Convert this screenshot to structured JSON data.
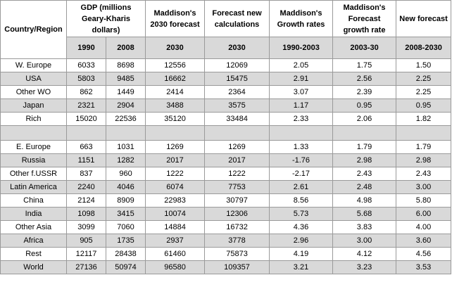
{
  "header": {
    "country": "Country/Region",
    "gdp_group": "GDP (millions Geary-Kharis dollars)",
    "maddison_2030": "Maddison's 2030 forecast",
    "forecast_new": "Forecast new calculations",
    "maddison_growth": "Maddison's Growth rates",
    "maddison_forecast_growth": "Maddison's Forecast growth rate",
    "new_forecast": "New forecast",
    "y1990": "1990",
    "y2008": "2008",
    "y2030a": "2030",
    "y2030b": "2030",
    "p1990_2003": "1990-2003",
    "p2003_30": "2003-30",
    "p2008_2030": "2008-2030"
  },
  "group1": [
    {
      "region": "W. Europe",
      "v1990": "6033",
      "v2008": "8698",
      "m2030": "12556",
      "f2030": "12069",
      "g1": "2.05",
      "g2": "1.75",
      "g3": "1.50"
    },
    {
      "region": "USA",
      "v1990": "5803",
      "v2008": "9485",
      "m2030": "16662",
      "f2030": "15475",
      "g1": "2.91",
      "g2": "2.56",
      "g3": "2.25"
    },
    {
      "region": "Other WO",
      "v1990": "862",
      "v2008": "1449",
      "m2030": "2414",
      "f2030": "2364",
      "g1": "3.07",
      "g2": "2.39",
      "g3": "2.25"
    },
    {
      "region": "Japan",
      "v1990": "2321",
      "v2008": "2904",
      "m2030": "3488",
      "f2030": "3575",
      "g1": "1.17",
      "g2": "0.95",
      "g3": "0.95"
    },
    {
      "region": "Rich",
      "v1990": "15020",
      "v2008": "22536",
      "m2030": "35120",
      "f2030": "33484",
      "g1": "2.33",
      "g2": "2.06",
      "g3": "1.82"
    }
  ],
  "group2": [
    {
      "region": "E. Europe",
      "v1990": "663",
      "v2008": "1031",
      "m2030": "1269",
      "f2030": "1269",
      "g1": "1.33",
      "g2": "1.79",
      "g3": "1.79"
    },
    {
      "region": "Russia",
      "v1990": "1151",
      "v2008": "1282",
      "m2030": "2017",
      "f2030": "2017",
      "g1": "-1.76",
      "g2": "2.98",
      "g3": "2.98"
    },
    {
      "region": "Other f.USSR",
      "v1990": "837",
      "v2008": "960",
      "m2030": "1222",
      "f2030": "1222",
      "g1": "-2.17",
      "g2": "2.43",
      "g3": "2.43"
    },
    {
      "region": "Latin America",
      "v1990": "2240",
      "v2008": "4046",
      "m2030": "6074",
      "f2030": "7753",
      "g1": "2.61",
      "g2": "2.48",
      "g3": "3.00"
    },
    {
      "region": "China",
      "v1990": "2124",
      "v2008": "8909",
      "m2030": "22983",
      "f2030": "30797",
      "g1": "8.56",
      "g2": "4.98",
      "g3": "5.80"
    },
    {
      "region": "India",
      "v1990": "1098",
      "v2008": "3415",
      "m2030": "10074",
      "f2030": "12306",
      "g1": "5.73",
      "g2": "5.68",
      "g3": "6.00"
    },
    {
      "region": "Other Asia",
      "v1990": "3099",
      "v2008": "7060",
      "m2030": "14884",
      "f2030": "16732",
      "g1": "4.36",
      "g2": "3.83",
      "g3": "4.00"
    },
    {
      "region": "Africa",
      "v1990": "905",
      "v2008": "1735",
      "m2030": "2937",
      "f2030": "3778",
      "g1": "2.96",
      "g2": "3.00",
      "g3": "3.60"
    },
    {
      "region": "Rest",
      "v1990": "12117",
      "v2008": "28438",
      "m2030": "61460",
      "f2030": "75873",
      "g1": "4.19",
      "g2": "4.12",
      "g3": "4.56"
    },
    {
      "region": "World",
      "v1990": "27136",
      "v2008": "50974",
      "m2030": "96580",
      "f2030": "109357",
      "g1": "3.21",
      "g2": "3.23",
      "g3": "3.53"
    }
  ]
}
